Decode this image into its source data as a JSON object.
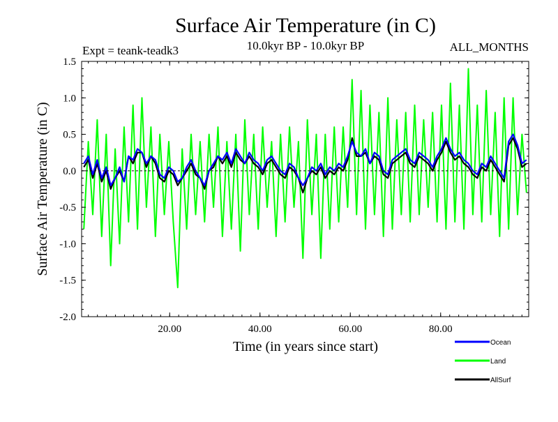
{
  "chart_data": {
    "type": "line",
    "title": "Surface Air Temperature (in C)",
    "experiment": "Expt = teank-teadk3",
    "period": "10.0kyr BP - 10.0kyr BP",
    "season": "ALL_MONTHS",
    "xlabel": "Time (in years since start)",
    "ylabel": "Surface Air Temperature (in C)",
    "xlim": [
      0.5,
      99.5
    ],
    "ylim": [
      -2.0,
      1.5
    ],
    "x_ticks": [
      20,
      40,
      60,
      80
    ],
    "x_tick_labels": [
      "20.00",
      "40.00",
      "60.00",
      "80.00"
    ],
    "y_ticks": [
      -2.0,
      -1.5,
      -1.0,
      -0.5,
      0.0,
      0.5,
      1.0,
      1.5
    ],
    "y_tick_labels": [
      "-2.0",
      "-1.5",
      "-1.0",
      "-0.5",
      "0.0",
      "0.5",
      "1.0",
      "1.5"
    ],
    "zero_line": true,
    "legend_position": "bottom-right, below plot",
    "series": [
      {
        "name": "Land",
        "color": "#00ff00",
        "values": [
          -0.8,
          0.4,
          -0.6,
          0.7,
          -0.9,
          0.5,
          -1.3,
          0.3,
          -1.0,
          0.6,
          -0.7,
          0.9,
          -0.8,
          1.0,
          -0.5,
          0.6,
          -0.9,
          0.5,
          -0.6,
          0.4,
          -0.7,
          -1.6,
          0.3,
          -0.8,
          0.5,
          -0.6,
          0.4,
          -0.7,
          0.5,
          -0.5,
          0.6,
          -0.9,
          0.4,
          -0.8,
          0.5,
          -1.1,
          0.7,
          -0.6,
          0.5,
          -0.8,
          0.6,
          -0.5,
          0.4,
          -0.9,
          0.5,
          -0.7,
          0.6,
          -0.5,
          0.4,
          -1.2,
          0.7,
          -0.6,
          0.5,
          -1.2,
          0.5,
          -0.8,
          0.6,
          -0.7,
          0.6,
          -0.5,
          1.25,
          -0.6,
          1.1,
          -0.8,
          0.9,
          -0.6,
          0.8,
          -0.9,
          1.0,
          -0.8,
          0.7,
          -0.6,
          0.8,
          -0.7,
          0.9,
          -0.6,
          0.7,
          -0.5,
          0.8,
          -0.7,
          0.9,
          -0.8,
          1.2,
          -0.7,
          0.9,
          -0.8,
          1.4,
          -0.6,
          0.9,
          -0.7,
          1.1,
          -0.6,
          0.8,
          -0.9,
          1.0,
          -0.8,
          1.0,
          -0.6,
          0.5,
          -0.3
        ]
      },
      {
        "name": "Ocean",
        "color": "#0000ff",
        "values": [
          0.1,
          0.2,
          -0.05,
          0.15,
          -0.1,
          0.05,
          -0.2,
          -0.1,
          0.05,
          -0.15,
          0.2,
          0.15,
          0.3,
          0.25,
          0.1,
          0.2,
          0.15,
          -0.05,
          -0.1,
          0.05,
          0.0,
          -0.15,
          -0.1,
          0.05,
          0.15,
          0.0,
          -0.1,
          -0.2,
          0.0,
          0.1,
          0.2,
          0.15,
          0.25,
          0.1,
          0.3,
          0.2,
          0.1,
          0.25,
          0.15,
          0.1,
          0.0,
          0.15,
          0.2,
          0.1,
          0.0,
          -0.05,
          0.1,
          0.05,
          -0.1,
          -0.2,
          -0.1,
          0.05,
          0.0,
          0.1,
          -0.05,
          0.05,
          0.0,
          0.1,
          0.05,
          0.2,
          0.4,
          0.25,
          0.2,
          0.3,
          0.1,
          0.25,
          0.2,
          0.0,
          -0.05,
          0.15,
          0.2,
          0.25,
          0.3,
          0.15,
          0.1,
          0.25,
          0.2,
          0.15,
          0.05,
          0.2,
          0.3,
          0.45,
          0.3,
          0.2,
          0.25,
          0.15,
          0.1,
          0.0,
          -0.05,
          0.1,
          0.05,
          0.2,
          0.1,
          0.0,
          -0.1,
          0.4,
          0.5,
          0.35,
          0.1,
          0.15
        ]
      },
      {
        "name": "AllSurf",
        "color": "#000000",
        "values": [
          0.05,
          0.15,
          -0.1,
          0.1,
          -0.15,
          0.0,
          -0.25,
          -0.1,
          0.0,
          -0.15,
          0.2,
          0.1,
          0.25,
          0.25,
          0.05,
          0.2,
          0.1,
          -0.1,
          -0.15,
          0.0,
          -0.05,
          -0.2,
          -0.1,
          0.0,
          0.1,
          -0.05,
          -0.1,
          -0.25,
          0.0,
          0.05,
          0.2,
          0.1,
          0.2,
          0.05,
          0.25,
          0.15,
          0.1,
          0.2,
          0.1,
          0.05,
          -0.05,
          0.1,
          0.15,
          0.05,
          -0.05,
          -0.1,
          0.05,
          0.0,
          -0.1,
          -0.3,
          -0.1,
          0.0,
          -0.05,
          0.05,
          -0.1,
          0.0,
          -0.05,
          0.05,
          0.0,
          0.15,
          0.45,
          0.2,
          0.2,
          0.25,
          0.1,
          0.2,
          0.15,
          -0.05,
          -0.1,
          0.1,
          0.15,
          0.2,
          0.25,
          0.1,
          0.05,
          0.2,
          0.15,
          0.1,
          0.0,
          0.15,
          0.25,
          0.4,
          0.25,
          0.15,
          0.2,
          0.1,
          0.05,
          -0.05,
          -0.1,
          0.05,
          0.0,
          0.15,
          0.05,
          -0.05,
          -0.15,
          0.35,
          0.45,
          0.3,
          0.05,
          0.1
        ]
      }
    ]
  }
}
